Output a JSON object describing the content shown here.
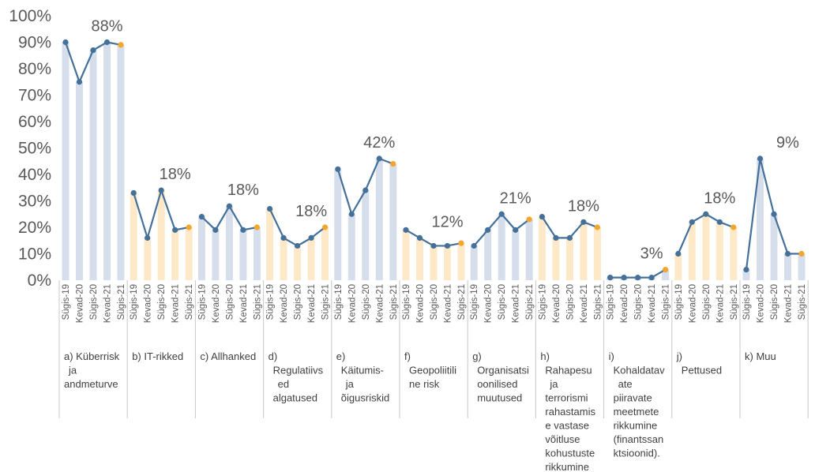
{
  "chart_data": {
    "type": "line",
    "title": "",
    "xlabel": "",
    "ylabel": "",
    "ylim": [
      0,
      100
    ],
    "yticks": [
      "0%",
      "10%",
      "20%",
      "30%",
      "40%",
      "50%",
      "60%",
      "70%",
      "80%",
      "90%",
      "100%"
    ],
    "periods": [
      "Sügis-19",
      "Kevad-20",
      "Sügis-20",
      "Kevad-21",
      "Sügis-21"
    ],
    "colors": {
      "line": "#44709a",
      "marker": "#44709a",
      "last_marker": "#f2a72c",
      "bar_blue": "#d6deeb",
      "bar_orange": "#fde8c8",
      "grid": "#c8c8c8"
    },
    "groups": [
      {
        "label_lines": [
          "a) Küberrisk",
          "ja",
          "andmeturve"
        ],
        "values": [
          90,
          75,
          87,
          90,
          89
        ],
        "bar_color": "blue",
        "data_label": "88%"
      },
      {
        "label_lines": [
          "b) IT-rikked"
        ],
        "values": [
          33,
          16,
          34,
          19,
          20
        ],
        "bar_color": "orange",
        "data_label": "18%"
      },
      {
        "label_lines": [
          "c) Allhanked"
        ],
        "values": [
          24,
          19,
          28,
          19,
          20
        ],
        "bar_color": "blue",
        "data_label": "18%"
      },
      {
        "label_lines": [
          "d)",
          "Regulatiivs",
          "ed",
          "algatused"
        ],
        "values": [
          27,
          16,
          13,
          16,
          20
        ],
        "bar_color": "orange",
        "data_label": "18%"
      },
      {
        "label_lines": [
          "e)",
          "Käitumis-",
          "ja",
          "õigusriskid"
        ],
        "values": [
          42,
          25,
          34,
          46,
          44
        ],
        "bar_color": "blue",
        "data_label": "42%"
      },
      {
        "label_lines": [
          "f)",
          "Geopoliitili",
          "ne risk"
        ],
        "values": [
          19,
          16,
          13,
          13,
          14
        ],
        "bar_color": "orange",
        "data_label": "12%"
      },
      {
        "label_lines": [
          "g)",
          "Organisatsi",
          "oonilised",
          "muutused"
        ],
        "values": [
          13,
          19,
          25,
          19,
          23
        ],
        "bar_color": "blue",
        "data_label": "21%"
      },
      {
        "label_lines": [
          "h)",
          "Rahapesu",
          "ja",
          "terrorismi",
          "rahastamis",
          "e vastase",
          "võitluse",
          "kohustuste",
          "rikkumine"
        ],
        "values": [
          24,
          16,
          16,
          22,
          20
        ],
        "bar_color": "orange",
        "data_label": "18%"
      },
      {
        "label_lines": [
          "i)",
          "Kohaldatav",
          "ate",
          "piiravate",
          "meetmete",
          "rikkumine",
          "(finantssan",
          "ktsioonid)."
        ],
        "values": [
          1,
          1,
          1,
          1,
          4
        ],
        "bar_color": "blue",
        "data_label": "3%"
      },
      {
        "label_lines": [
          "j)",
          "Pettused"
        ],
        "values": [
          10,
          22,
          25,
          22,
          20
        ],
        "bar_color": "orange",
        "data_label": "18%"
      },
      {
        "label_lines": [
          "k) Muu"
        ],
        "values": [
          4,
          46,
          25,
          10,
          10
        ],
        "bar_color": "blue",
        "data_label": "9%"
      }
    ]
  }
}
